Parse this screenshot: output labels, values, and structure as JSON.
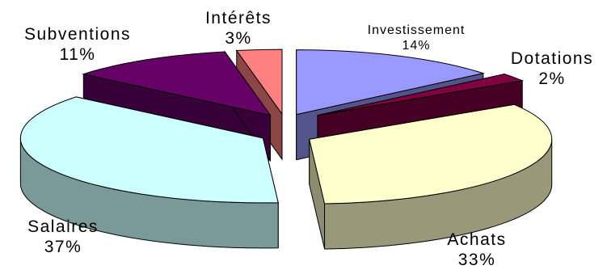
{
  "chart_data": {
    "type": "pie",
    "style": "3d-exploded",
    "title": "",
    "legend": "none",
    "slices": [
      {
        "label": "Investissement",
        "value": 14,
        "value_label": "14%",
        "color": "#9999ff"
      },
      {
        "label": "Dotations",
        "value": 2,
        "value_label": "2%",
        "color": "#800040"
      },
      {
        "label": "Achats",
        "value": 33,
        "value_label": "33%",
        "color": "#ffffcc"
      },
      {
        "label": "Salaires",
        "value": 37,
        "value_label": "37%",
        "color": "#ccffff"
      },
      {
        "label": "Subventions",
        "value": 11,
        "value_label": "11%",
        "color": "#660066"
      },
      {
        "label": "Intérêts",
        "value": 3,
        "value_label": "3%",
        "color": "#ff8080"
      }
    ]
  }
}
